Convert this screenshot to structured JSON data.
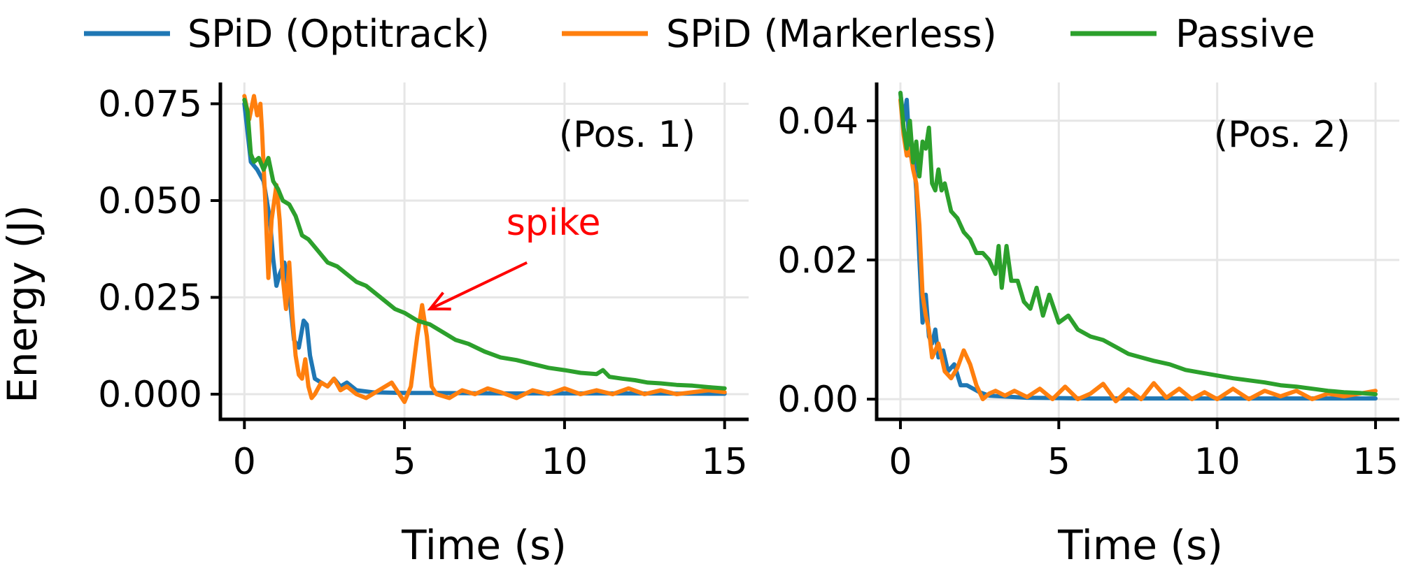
{
  "legend": [
    {
      "label": "SPiD (Optitrack)",
      "color": "#1f77b4"
    },
    {
      "label": "SPiD (Markerless)",
      "color": "#ff7f0e"
    },
    {
      "label": "Passive",
      "color": "#2ca02c"
    }
  ],
  "chart_data": [
    {
      "type": "line",
      "title": "(Pos. 1)",
      "xlabel": "Time (s)",
      "ylabel": "Energy (J)",
      "xlim": [
        -0.75,
        15.75
      ],
      "ylim": [
        -0.0065,
        0.0805
      ],
      "xticks": [
        0,
        5,
        10,
        15
      ],
      "xtick_labels": [
        "0",
        "5",
        "10",
        "15"
      ],
      "yticks": [
        0,
        0.025,
        0.05,
        0.075
      ],
      "ytick_labels": [
        "0.000",
        "0.025",
        "0.050",
        "0.075"
      ],
      "grid": true,
      "annotation": {
        "text": "spike",
        "color": "#ff0000",
        "x": 5.8,
        "y": 0.022,
        "text_x": 9.0,
        "text_y": 0.043
      },
      "series": [
        {
          "name": "SPiD (Optitrack)",
          "color": "#1f77b4",
          "x": [
            0,
            0.2,
            0.4,
            0.6,
            0.8,
            0.9,
            1.0,
            1.1,
            1.25,
            1.4,
            1.55,
            1.7,
            1.85,
            1.95,
            2.05,
            2.2,
            2.4,
            2.6,
            2.8,
            3.0,
            3.2,
            3.5,
            4.0,
            5.0,
            6.0,
            8.0,
            10.0,
            12.0,
            15.0
          ],
          "y": [
            0.075,
            0.06,
            0.058,
            0.055,
            0.045,
            0.035,
            0.028,
            0.031,
            0.034,
            0.026,
            0.014,
            0.012,
            0.019,
            0.018,
            0.01,
            0.004,
            0.003,
            0.002,
            0.004,
            0.002,
            0.003,
            0.001,
            0.0005,
            0.0003,
            0.0003,
            0.0002,
            0.0002,
            0.0002,
            0.0001
          ]
        },
        {
          "name": "SPiD (Markerless)",
          "color": "#ff7f0e",
          "x": [
            0,
            0.15,
            0.3,
            0.4,
            0.5,
            0.55,
            0.65,
            0.75,
            0.85,
            1.0,
            1.1,
            1.2,
            1.3,
            1.4,
            1.5,
            1.6,
            1.7,
            1.8,
            1.9,
            2.0,
            2.1,
            2.2,
            2.4,
            2.6,
            2.8,
            3.0,
            3.2,
            3.5,
            3.8,
            4.2,
            4.6,
            5.0,
            5.2,
            5.4,
            5.55,
            5.7,
            5.85,
            6.0,
            6.4,
            6.8,
            7.2,
            7.6,
            8.0,
            8.5,
            9.0,
            9.5,
            10.0,
            10.5,
            11.0,
            11.5,
            12.0,
            12.5,
            13.0,
            13.5,
            14.0,
            14.5,
            15.0
          ],
          "y": [
            0.077,
            0.071,
            0.077,
            0.072,
            0.075,
            0.068,
            0.05,
            0.03,
            0.045,
            0.054,
            0.045,
            0.03,
            0.022,
            0.034,
            0.02,
            0.01,
            0.005,
            0.004,
            0.009,
            0.002,
            -0.001,
            0.0,
            0.003,
            0.002,
            0.004,
            0.001,
            0.002,
            0.0,
            -0.001,
            0.001,
            0.003,
            -0.002,
            0.002,
            0.015,
            0.023,
            0.015,
            0.002,
            0.0,
            -0.001,
            0.001,
            0.0,
            0.0015,
            0.0005,
            -0.001,
            0.001,
            0.0,
            0.0015,
            0.0,
            0.001,
            0.0,
            0.0015,
            0.0,
            0.001,
            0.0,
            0.0005,
            0.001,
            0.0005
          ]
        },
        {
          "name": "Passive",
          "color": "#2ca02c",
          "x": [
            0,
            0.1,
            0.2,
            0.3,
            0.45,
            0.6,
            0.75,
            0.9,
            1.05,
            1.2,
            1.4,
            1.6,
            1.8,
            2.0,
            2.3,
            2.6,
            2.9,
            3.2,
            3.5,
            3.8,
            4.1,
            4.4,
            4.7,
            5.0,
            5.4,
            5.8,
            6.2,
            6.6,
            7.0,
            7.5,
            8.0,
            8.5,
            9.0,
            9.5,
            10.0,
            10.5,
            11.0,
            11.2,
            11.4,
            11.8,
            12.2,
            12.6,
            13.0,
            13.5,
            14.0,
            14.5,
            15.0
          ],
          "y": [
            0.076,
            0.073,
            0.062,
            0.06,
            0.061,
            0.058,
            0.061,
            0.055,
            0.053,
            0.05,
            0.049,
            0.046,
            0.041,
            0.04,
            0.037,
            0.034,
            0.033,
            0.031,
            0.029,
            0.028,
            0.026,
            0.024,
            0.022,
            0.021,
            0.019,
            0.018,
            0.016,
            0.014,
            0.013,
            0.011,
            0.0095,
            0.0088,
            0.0078,
            0.0068,
            0.0062,
            0.0055,
            0.0052,
            0.0062,
            0.0045,
            0.004,
            0.0036,
            0.003,
            0.0028,
            0.0024,
            0.0022,
            0.0018,
            0.0015
          ]
        }
      ]
    },
    {
      "type": "line",
      "title": "(Pos. 2)",
      "xlabel": "Time (s)",
      "ylabel": "",
      "xlim": [
        -0.75,
        15.75
      ],
      "ylim": [
        -0.0029,
        0.0455
      ],
      "xticks": [
        0,
        5,
        10,
        15
      ],
      "xtick_labels": [
        "0",
        "5",
        "10",
        "15"
      ],
      "yticks": [
        0,
        0.02,
        0.04
      ],
      "ytick_labels": [
        "0.00",
        "0.02",
        "0.04"
      ],
      "grid": true,
      "series": [
        {
          "name": "SPiD (Optitrack)",
          "color": "#1f77b4",
          "x": [
            0,
            0.1,
            0.2,
            0.3,
            0.4,
            0.5,
            0.6,
            0.7,
            0.8,
            0.9,
            1.0,
            1.1,
            1.2,
            1.35,
            1.5,
            1.7,
            1.9,
            2.1,
            2.3,
            2.5,
            2.8,
            3.2,
            4.0,
            6.0,
            8.0,
            10.0,
            12.0,
            15.0
          ],
          "y": [
            0.044,
            0.04,
            0.043,
            0.035,
            0.036,
            0.03,
            0.02,
            0.011,
            0.015,
            0.009,
            0.008,
            0.01,
            0.006,
            0.007,
            0.004,
            0.005,
            0.002,
            0.002,
            0.0015,
            0.001,
            0.0005,
            0.0004,
            0.0002,
            0.0001,
            0.0001,
            0.0001,
            0.0001,
            0.0001
          ]
        },
        {
          "name": "SPiD (Markerless)",
          "color": "#ff7f0e",
          "x": [
            0,
            0.1,
            0.2,
            0.3,
            0.4,
            0.5,
            0.6,
            0.7,
            0.8,
            0.9,
            1.0,
            1.2,
            1.4,
            1.6,
            1.8,
            2.0,
            2.2,
            2.4,
            2.6,
            2.8,
            3.0,
            3.3,
            3.6,
            4.0,
            4.4,
            4.8,
            5.2,
            5.6,
            6.0,
            6.4,
            6.8,
            7.2,
            7.6,
            8.0,
            8.4,
            8.8,
            9.2,
            9.6,
            10.0,
            10.5,
            11.0,
            11.5,
            12.0,
            12.5,
            13.0,
            13.5,
            14.0,
            14.5,
            15.0
          ],
          "y": [
            0.043,
            0.038,
            0.035,
            0.036,
            0.033,
            0.031,
            0.025,
            0.015,
            0.012,
            0.01,
            0.006,
            0.008,
            0.004,
            0.003,
            0.0045,
            0.007,
            0.005,
            0.002,
            0.0,
            0.0008,
            0.0012,
            0.0005,
            0.0012,
            0.0003,
            0.0015,
            0.0,
            0.0018,
            0.0,
            0.0008,
            0.0022,
            -0.0003,
            0.0014,
            0.0,
            0.0023,
            0.0002,
            0.0015,
            0.0,
            0.001,
            0.0,
            0.0015,
            0.0,
            0.0012,
            0.0004,
            0.0012,
            0.0,
            0.0008,
            0.0004,
            0.0008,
            0.0012
          ]
        },
        {
          "name": "Passive",
          "color": "#2ca02c",
          "x": [
            0,
            0.1,
            0.2,
            0.3,
            0.4,
            0.5,
            0.6,
            0.7,
            0.8,
            0.9,
            1.0,
            1.1,
            1.2,
            1.3,
            1.4,
            1.6,
            1.8,
            2.0,
            2.2,
            2.4,
            2.6,
            2.8,
            3.0,
            3.1,
            3.2,
            3.35,
            3.5,
            3.7,
            3.9,
            4.1,
            4.3,
            4.5,
            4.7,
            5.0,
            5.3,
            5.6,
            6.0,
            6.4,
            6.8,
            7.2,
            7.6,
            8.0,
            8.5,
            9.0,
            9.5,
            10.0,
            10.5,
            11.0,
            11.5,
            12.0,
            12.5,
            13.0,
            13.5,
            14.0,
            14.5,
            15.0
          ],
          "y": [
            0.044,
            0.039,
            0.036,
            0.04,
            0.034,
            0.037,
            0.032,
            0.037,
            0.036,
            0.039,
            0.031,
            0.03,
            0.033,
            0.03,
            0.031,
            0.027,
            0.026,
            0.024,
            0.023,
            0.021,
            0.021,
            0.02,
            0.018,
            0.022,
            0.016,
            0.022,
            0.017,
            0.017,
            0.014,
            0.013,
            0.016,
            0.012,
            0.015,
            0.011,
            0.012,
            0.01,
            0.009,
            0.0085,
            0.0075,
            0.0065,
            0.006,
            0.0055,
            0.005,
            0.0042,
            0.0038,
            0.0034,
            0.003,
            0.0027,
            0.0024,
            0.002,
            0.0018,
            0.0015,
            0.0012,
            0.001,
            0.0009,
            0.0007
          ]
        }
      ]
    }
  ]
}
